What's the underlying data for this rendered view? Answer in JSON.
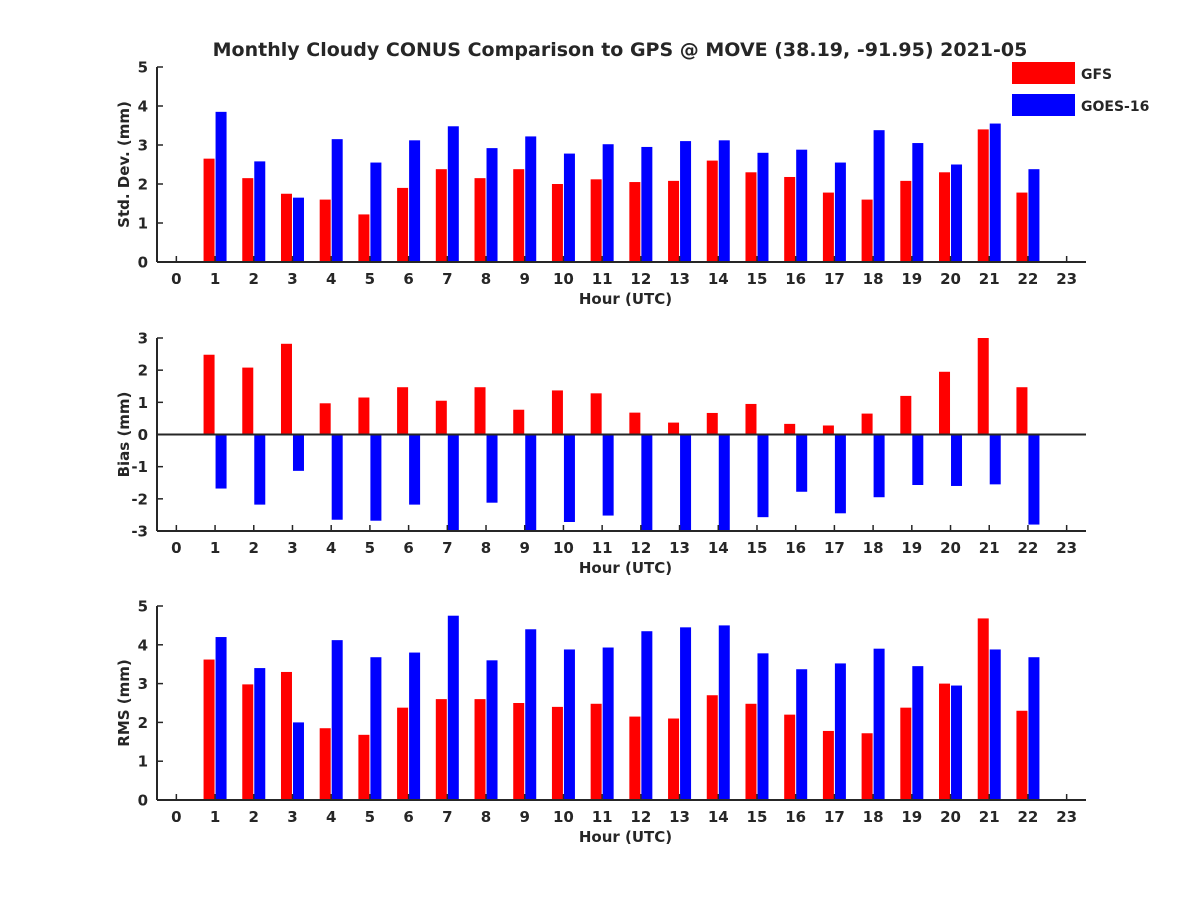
{
  "figure": {
    "title": "Monthly Cloudy CONUS Comparison to GPS @ MOVE (38.19, -91.95) 2021-05",
    "colors": {
      "GFS": "#ff0000",
      "GOES-16": "#0000ff",
      "axis": "#262626"
    }
  },
  "chart_data": [
    {
      "type": "bar",
      "panel": "std",
      "title": "Monthly Cloudy CONUS Comparison to GPS @ MOVE (38.19, -91.95) 2021-05",
      "xlabel": "Hour (UTC)",
      "ylabel": "Std. Dev. (mm)",
      "ylim": [
        0,
        5
      ],
      "yticks": [
        0,
        1,
        2,
        3,
        4,
        5
      ],
      "xlim": [
        -0.5,
        23.5
      ],
      "categories": [
        0,
        1,
        2,
        3,
        4,
        5,
        6,
        7,
        8,
        9,
        10,
        11,
        12,
        13,
        14,
        15,
        16,
        17,
        18,
        19,
        20,
        21,
        22,
        23
      ],
      "legend": {
        "position": "top-right",
        "entries": [
          "GFS",
          "GOES-16"
        ]
      },
      "series": [
        {
          "name": "GFS",
          "color": "#ff0000",
          "values": [
            null,
            2.65,
            2.15,
            1.75,
            1.6,
            1.22,
            1.9,
            2.38,
            2.15,
            2.38,
            2.0,
            2.12,
            2.05,
            2.08,
            2.6,
            2.3,
            2.18,
            1.78,
            1.6,
            2.08,
            2.3,
            3.4,
            1.78,
            null
          ]
        },
        {
          "name": "GOES-16",
          "color": "#0000ff",
          "values": [
            null,
            3.85,
            2.58,
            1.65,
            3.15,
            2.55,
            3.12,
            3.48,
            2.92,
            3.22,
            2.78,
            3.02,
            2.95,
            3.1,
            3.12,
            2.8,
            2.88,
            2.55,
            3.38,
            3.05,
            2.5,
            3.55,
            2.38,
            null
          ]
        }
      ]
    },
    {
      "type": "bar",
      "panel": "bias",
      "title": "",
      "xlabel": "Hour (UTC)",
      "ylabel": "Bias (mm)",
      "ylim": [
        -3,
        3
      ],
      "yticks": [
        -3,
        -2,
        -1,
        0,
        1,
        2,
        3
      ],
      "xlim": [
        -0.5,
        23.5
      ],
      "zero_line": true,
      "categories": [
        0,
        1,
        2,
        3,
        4,
        5,
        6,
        7,
        8,
        9,
        10,
        11,
        12,
        13,
        14,
        15,
        16,
        17,
        18,
        19,
        20,
        21,
        22,
        23
      ],
      "series": [
        {
          "name": "GFS",
          "color": "#ff0000",
          "values": [
            null,
            2.48,
            2.08,
            2.82,
            0.97,
            1.15,
            1.47,
            1.05,
            1.47,
            0.77,
            1.37,
            1.28,
            0.68,
            0.37,
            0.67,
            0.95,
            0.33,
            0.28,
            0.65,
            1.2,
            1.95,
            3.0,
            1.47,
            null
          ]
        },
        {
          "name": "GOES-16",
          "color": "#0000ff",
          "values": [
            null,
            -1.68,
            -2.18,
            -1.13,
            -2.65,
            -2.68,
            -2.18,
            -3.0,
            -2.12,
            -3.0,
            -2.72,
            -2.52,
            -3.0,
            -3.0,
            -3.0,
            -2.57,
            -1.78,
            -2.45,
            -1.95,
            -1.57,
            -1.6,
            -1.55,
            -2.8,
            null
          ]
        }
      ]
    },
    {
      "type": "bar",
      "panel": "rms",
      "title": "",
      "xlabel": "Hour (UTC)",
      "ylabel": "RMS (mm)",
      "ylim": [
        0,
        5
      ],
      "yticks": [
        0,
        1,
        2,
        3,
        4,
        5
      ],
      "xlim": [
        -0.5,
        23.5
      ],
      "categories": [
        0,
        1,
        2,
        3,
        4,
        5,
        6,
        7,
        8,
        9,
        10,
        11,
        12,
        13,
        14,
        15,
        16,
        17,
        18,
        19,
        20,
        21,
        22,
        23
      ],
      "series": [
        {
          "name": "GFS",
          "color": "#ff0000",
          "values": [
            null,
            3.62,
            2.98,
            3.3,
            1.85,
            1.68,
            2.38,
            2.6,
            2.6,
            2.5,
            2.4,
            2.48,
            2.15,
            2.1,
            2.7,
            2.48,
            2.2,
            1.78,
            1.72,
            2.38,
            3.0,
            4.68,
            2.3,
            null
          ]
        },
        {
          "name": "GOES-16",
          "color": "#0000ff",
          "values": [
            null,
            4.2,
            3.4,
            2.0,
            4.12,
            3.68,
            3.8,
            4.75,
            3.6,
            4.4,
            3.88,
            3.93,
            4.35,
            4.45,
            4.5,
            3.78,
            3.37,
            3.52,
            3.9,
            3.45,
            2.95,
            3.88,
            3.68,
            null
          ]
        }
      ]
    }
  ]
}
